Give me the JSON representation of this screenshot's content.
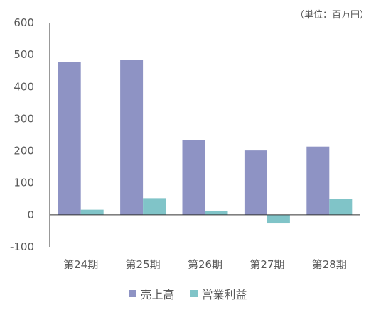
{
  "chart_data": {
    "type": "bar",
    "unit_note": "（単位：百万円）",
    "categories": [
      "第24期",
      "第25期",
      "第26期",
      "第27期",
      "第28期"
    ],
    "series": [
      {
        "name": "売上高",
        "color": "#8e93c4",
        "values": [
          477,
          484,
          234,
          201,
          213
        ]
      },
      {
        "name": "営業利益",
        "color": "#80c4c8",
        "values": [
          16,
          52,
          13,
          -27,
          49
        ]
      }
    ],
    "ylim": [
      -100,
      600
    ],
    "yticks": [
      "-100",
      "0",
      "100",
      "200",
      "300",
      "400",
      "500",
      "600"
    ],
    "ytick_values": [
      -100,
      0,
      100,
      200,
      300,
      400,
      500,
      600
    ],
    "grid": false,
    "legend": "bottom"
  }
}
